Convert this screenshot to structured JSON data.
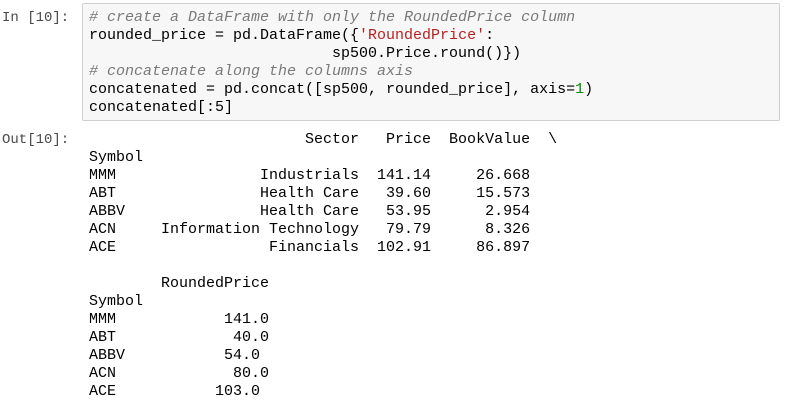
{
  "input_prompt": "In [10]:",
  "output_prompt": "Out[10]:",
  "code": [
    [
      {
        "text": "# create a DataFrame with only the RoundedPrice column",
        "color": "#7a7a7a",
        "italic": true
      }
    ],
    [
      {
        "text": "rounded_price = pd.DataFrame({",
        "color": "#000000"
      },
      {
        "text": "'RoundedPrice'",
        "color": "#ba2121"
      },
      {
        "text": ":",
        "color": "#000000"
      }
    ],
    [
      {
        "text": "                           sp500.Price.round()})",
        "color": "#000000"
      }
    ],
    [
      {
        "text": "# concatenate along the columns axis",
        "color": "#7a7a7a",
        "italic": true
      }
    ],
    [
      {
        "text": "concatenated = pd.concat([sp500, rounded_price], axis=",
        "color": "#000000"
      },
      {
        "text": "1",
        "color": "#008800"
      },
      {
        "text": ")",
        "color": "#000000"
      }
    ],
    [
      {
        "text": "concatenated[:5]",
        "color": "#000000"
      }
    ]
  ],
  "output": [
    "                        Sector   Price  BookValue  \\",
    "Symbol",
    "MMM                Industrials  141.14     26.668",
    "ABT                Health Care   39.60     15.573",
    "ABBV               Health Care   53.95      2.954",
    "ACN     Information Technology   79.79      8.326",
    "ACE                 Financials  102.91     86.897",
    "",
    "        RoundedPrice",
    "Symbol",
    "MMM            141.0",
    "ABT             40.0",
    "ABBV           54.0",
    "ACN             80.0",
    "ACE           103.0"
  ]
}
